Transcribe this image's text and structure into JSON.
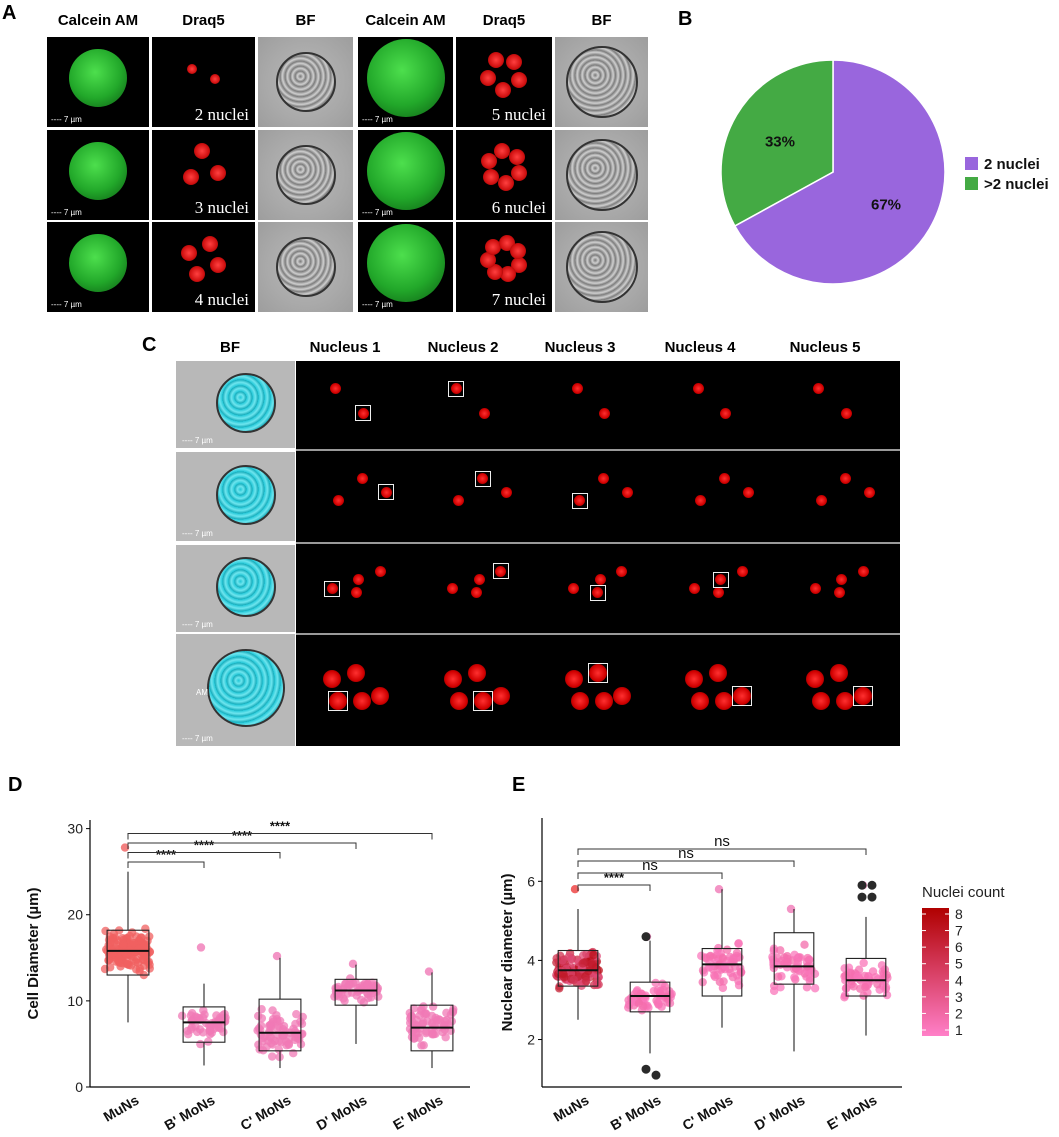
{
  "panels": {
    "A": {
      "label": "A",
      "column_headers": [
        "Calcein AM",
        "Draq5",
        "BF",
        "Calcein AM",
        "Draq5",
        "BF"
      ],
      "nuclei_labels": [
        "2 nuclei",
        "5 nuclei",
        "3 nuclei",
        "6 nuclei",
        "4 nuclei",
        "7 nuclei"
      ],
      "scale_label": "7 µm"
    },
    "B": {
      "label": "B"
    },
    "C": {
      "label": "C",
      "column_headers": [
        "BF",
        "Nucleus 1",
        "Nucleus 2",
        "Nucleus 3",
        "Nucleus 4",
        "Nucleus 5"
      ],
      "scale_label": "7 µm",
      "bf_annotation": "AM"
    },
    "D": {
      "label": "D"
    },
    "E": {
      "label": "E"
    }
  },
  "chart_data": [
    {
      "panel": "B",
      "type": "pie",
      "labels": [
        "2 nuclei",
        ">2 nuclei"
      ],
      "values": [
        67,
        33
      ],
      "value_labels": [
        "67%",
        "33%"
      ],
      "colors": [
        "#9966dd",
        "#44aa44"
      ],
      "legend": "right"
    },
    {
      "panel": "D",
      "type": "box",
      "categories": [
        "MuNs",
        "B' MoNs",
        "C' MoNs",
        "D' MoNs",
        "E' MoNs"
      ],
      "ylabel": "Cell Diameter (µm)",
      "ylim": [
        0,
        31
      ],
      "yticks": [
        0,
        10,
        20,
        30
      ],
      "boxes": [
        {
          "q1": 13,
          "median": 15.8,
          "q3": 18.2,
          "whisker_low": 7.5,
          "whisker_high": 25,
          "min_pt": 7.5,
          "max_pt": 27.8,
          "n": 150,
          "color": "#f06060"
        },
        {
          "q1": 5.2,
          "median": 7.5,
          "q3": 9.3,
          "whisker_low": 2.5,
          "whisker_high": 12,
          "min_pt": 2.2,
          "max_pt": 16.2,
          "n": 55,
          "color": "#f079b6"
        },
        {
          "q1": 4.2,
          "median": 6.3,
          "q3": 10.2,
          "whisker_low": 2.2,
          "whisker_high": 15,
          "min_pt": 2.2,
          "max_pt": 15.2,
          "n": 75,
          "color": "#f079b6"
        },
        {
          "q1": 9.5,
          "median": 11.2,
          "q3": 12.5,
          "whisker_low": 5,
          "whisker_high": 14.2,
          "min_pt": 5,
          "max_pt": 14.3,
          "n": 60,
          "color": "#f079b6"
        },
        {
          "q1": 4.2,
          "median": 6.9,
          "q3": 9.5,
          "whisker_low": 2.2,
          "whisker_high": 13.3,
          "min_pt": 2.2,
          "max_pt": 13.4,
          "n": 70,
          "color": "#f079b6"
        }
      ],
      "comparisons": [
        {
          "from": "MuNs",
          "to": "B' MoNs",
          "label": "****"
        },
        {
          "from": "MuNs",
          "to": "C' MoNs",
          "label": "****"
        },
        {
          "from": "MuNs",
          "to": "D' MoNs",
          "label": "****"
        },
        {
          "from": "MuNs",
          "to": "E' MoNs",
          "label": "****"
        }
      ]
    },
    {
      "panel": "E",
      "type": "box",
      "categories": [
        "MuNs",
        "B' MoNs",
        "C' MoNs",
        "D' MoNs",
        "E' MoNs"
      ],
      "ylabel": "Nuclear diameter (µm)",
      "ylim": [
        0.8,
        7.6
      ],
      "yticks": [
        2,
        4,
        6
      ],
      "boxes": [
        {
          "q1": 3.35,
          "median": 3.75,
          "q3": 4.25,
          "whisker_low": 2.5,
          "whisker_high": 5.3,
          "min_pt": 2.5,
          "max_pt": 5.8,
          "n": 150,
          "color": "#ee3b3b"
        },
        {
          "q1": 2.7,
          "median": 3.1,
          "q3": 3.45,
          "whisker_low": 1.65,
          "whisker_high": 4.5,
          "min_pt": 1.1,
          "max_pt": 4.6,
          "n": 55,
          "color": "#f079b6"
        },
        {
          "q1": 3.1,
          "median": 3.9,
          "q3": 4.3,
          "whisker_low": 2.3,
          "whisker_high": 5.8,
          "min_pt": 2.3,
          "max_pt": 5.8,
          "n": 60,
          "color": "#f079b6"
        },
        {
          "q1": 3.4,
          "median": 3.85,
          "q3": 4.7,
          "whisker_low": 1.7,
          "whisker_high": 5.3,
          "min_pt": 1.7,
          "max_pt": 5.3,
          "n": 60,
          "color": "#f079b6"
        },
        {
          "q1": 3.1,
          "median": 3.5,
          "q3": 4.05,
          "whisker_low": 2.1,
          "whisker_high": 5.1,
          "min_pt": 2.1,
          "max_pt": 5.9,
          "n": 60,
          "color": "#f079b6"
        }
      ],
      "outliers": [
        {
          "category": "B' MoNs",
          "values": [
            1.25,
            1.1,
            4.6
          ]
        },
        {
          "category": "E' MoNs",
          "values": [
            5.6,
            5.6,
            5.9,
            5.9
          ]
        }
      ],
      "comparisons": [
        {
          "from": "MuNs",
          "to": "B' MoNs",
          "label": "****"
        },
        {
          "from": "MuNs",
          "to": "C' MoNs",
          "label": "ns"
        },
        {
          "from": "MuNs",
          "to": "D' MoNs",
          "label": "ns"
        },
        {
          "from": "MuNs",
          "to": "E' MoNs",
          "label": "ns"
        }
      ],
      "legend": {
        "title": "Nuclei count",
        "ticks": [
          "8",
          "7",
          "6",
          "5",
          "4",
          "3",
          "2",
          "1"
        ],
        "color_low": "#ff7fc8",
        "color_high": "#b00000"
      }
    }
  ]
}
